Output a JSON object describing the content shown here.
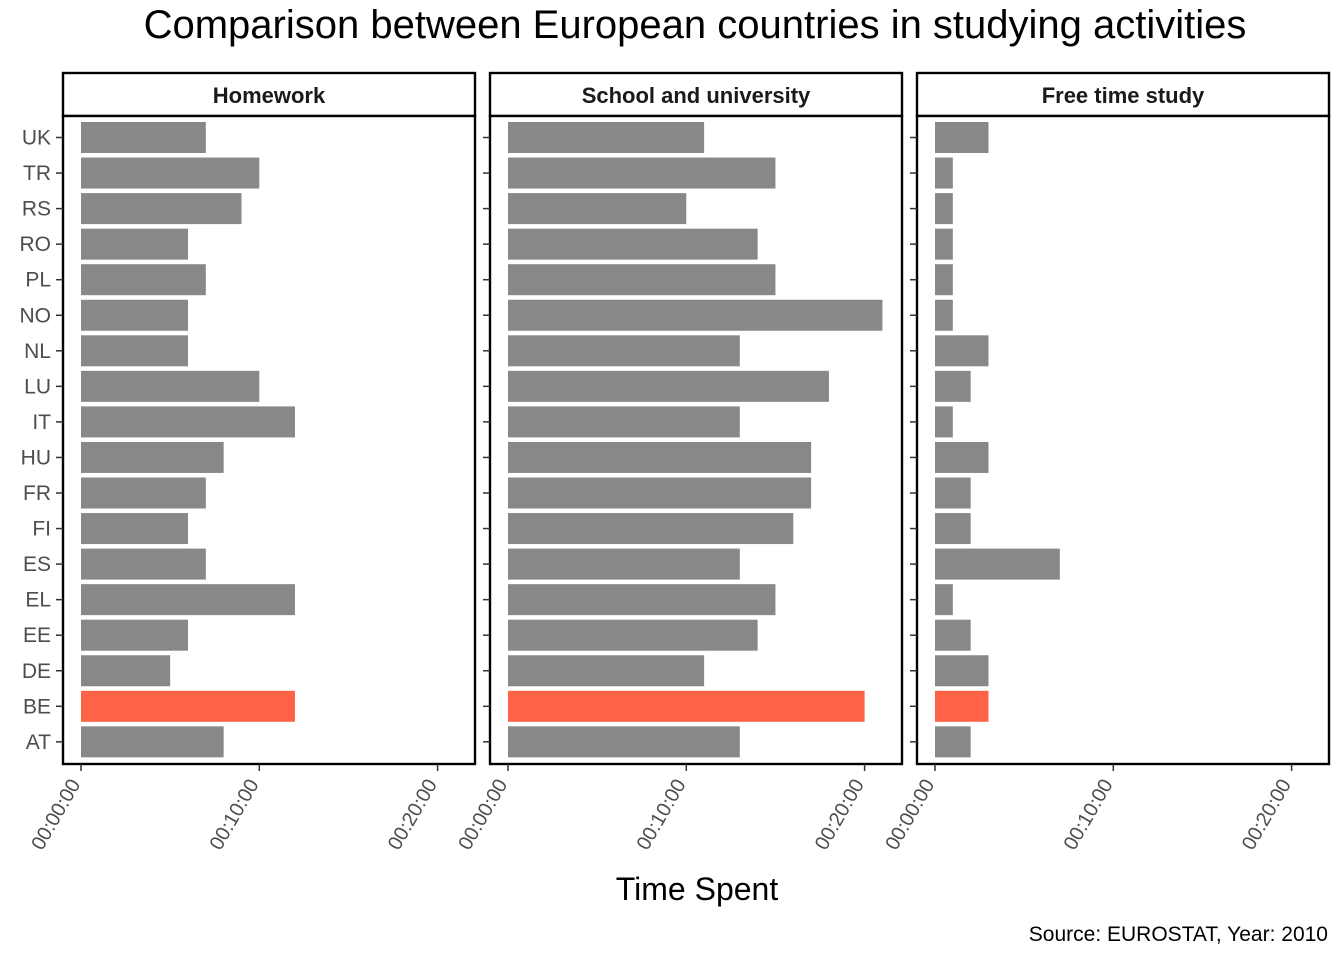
{
  "chart_data": {
    "type": "bar",
    "orientation": "horizontal",
    "title": "Comparison between European countries in studying activities",
    "xlabel": "Time Spent",
    "ylabel": "",
    "caption": "Source: EUROSTAT, Year: 2010",
    "xlim": [
      0,
      22
    ],
    "x_unit": "minutes",
    "x_ticks": [
      {
        "value": 0,
        "label": "00:00:00"
      },
      {
        "value": 10,
        "label": "00:10:00"
      },
      {
        "value": 20,
        "label": "00:20:00"
      }
    ],
    "categories": [
      "AT",
      "BE",
      "DE",
      "EE",
      "EL",
      "ES",
      "FI",
      "FR",
      "HU",
      "IT",
      "LU",
      "NL",
      "NO",
      "PL",
      "RO",
      "RS",
      "TR",
      "UK"
    ],
    "highlight_category": "BE",
    "colors": {
      "default": "#888888",
      "highlight": "#ff6347",
      "frame": "#000000"
    },
    "grid": false,
    "legend": "none",
    "facets": [
      {
        "name": "Homework",
        "values": [
          8,
          12,
          5,
          6,
          12,
          7,
          6,
          7,
          8,
          12,
          10,
          6,
          6,
          7,
          6,
          9,
          10,
          7
        ]
      },
      {
        "name": "School and university",
        "values": [
          13,
          20,
          11,
          14,
          15,
          13,
          16,
          17,
          17,
          13,
          18,
          13,
          21,
          15,
          14,
          10,
          15,
          11
        ]
      },
      {
        "name": "Free time study",
        "values": [
          2,
          3,
          3,
          2,
          1,
          7,
          2,
          2,
          3,
          1,
          2,
          3,
          1,
          1,
          1,
          1,
          1,
          3
        ]
      }
    ]
  }
}
